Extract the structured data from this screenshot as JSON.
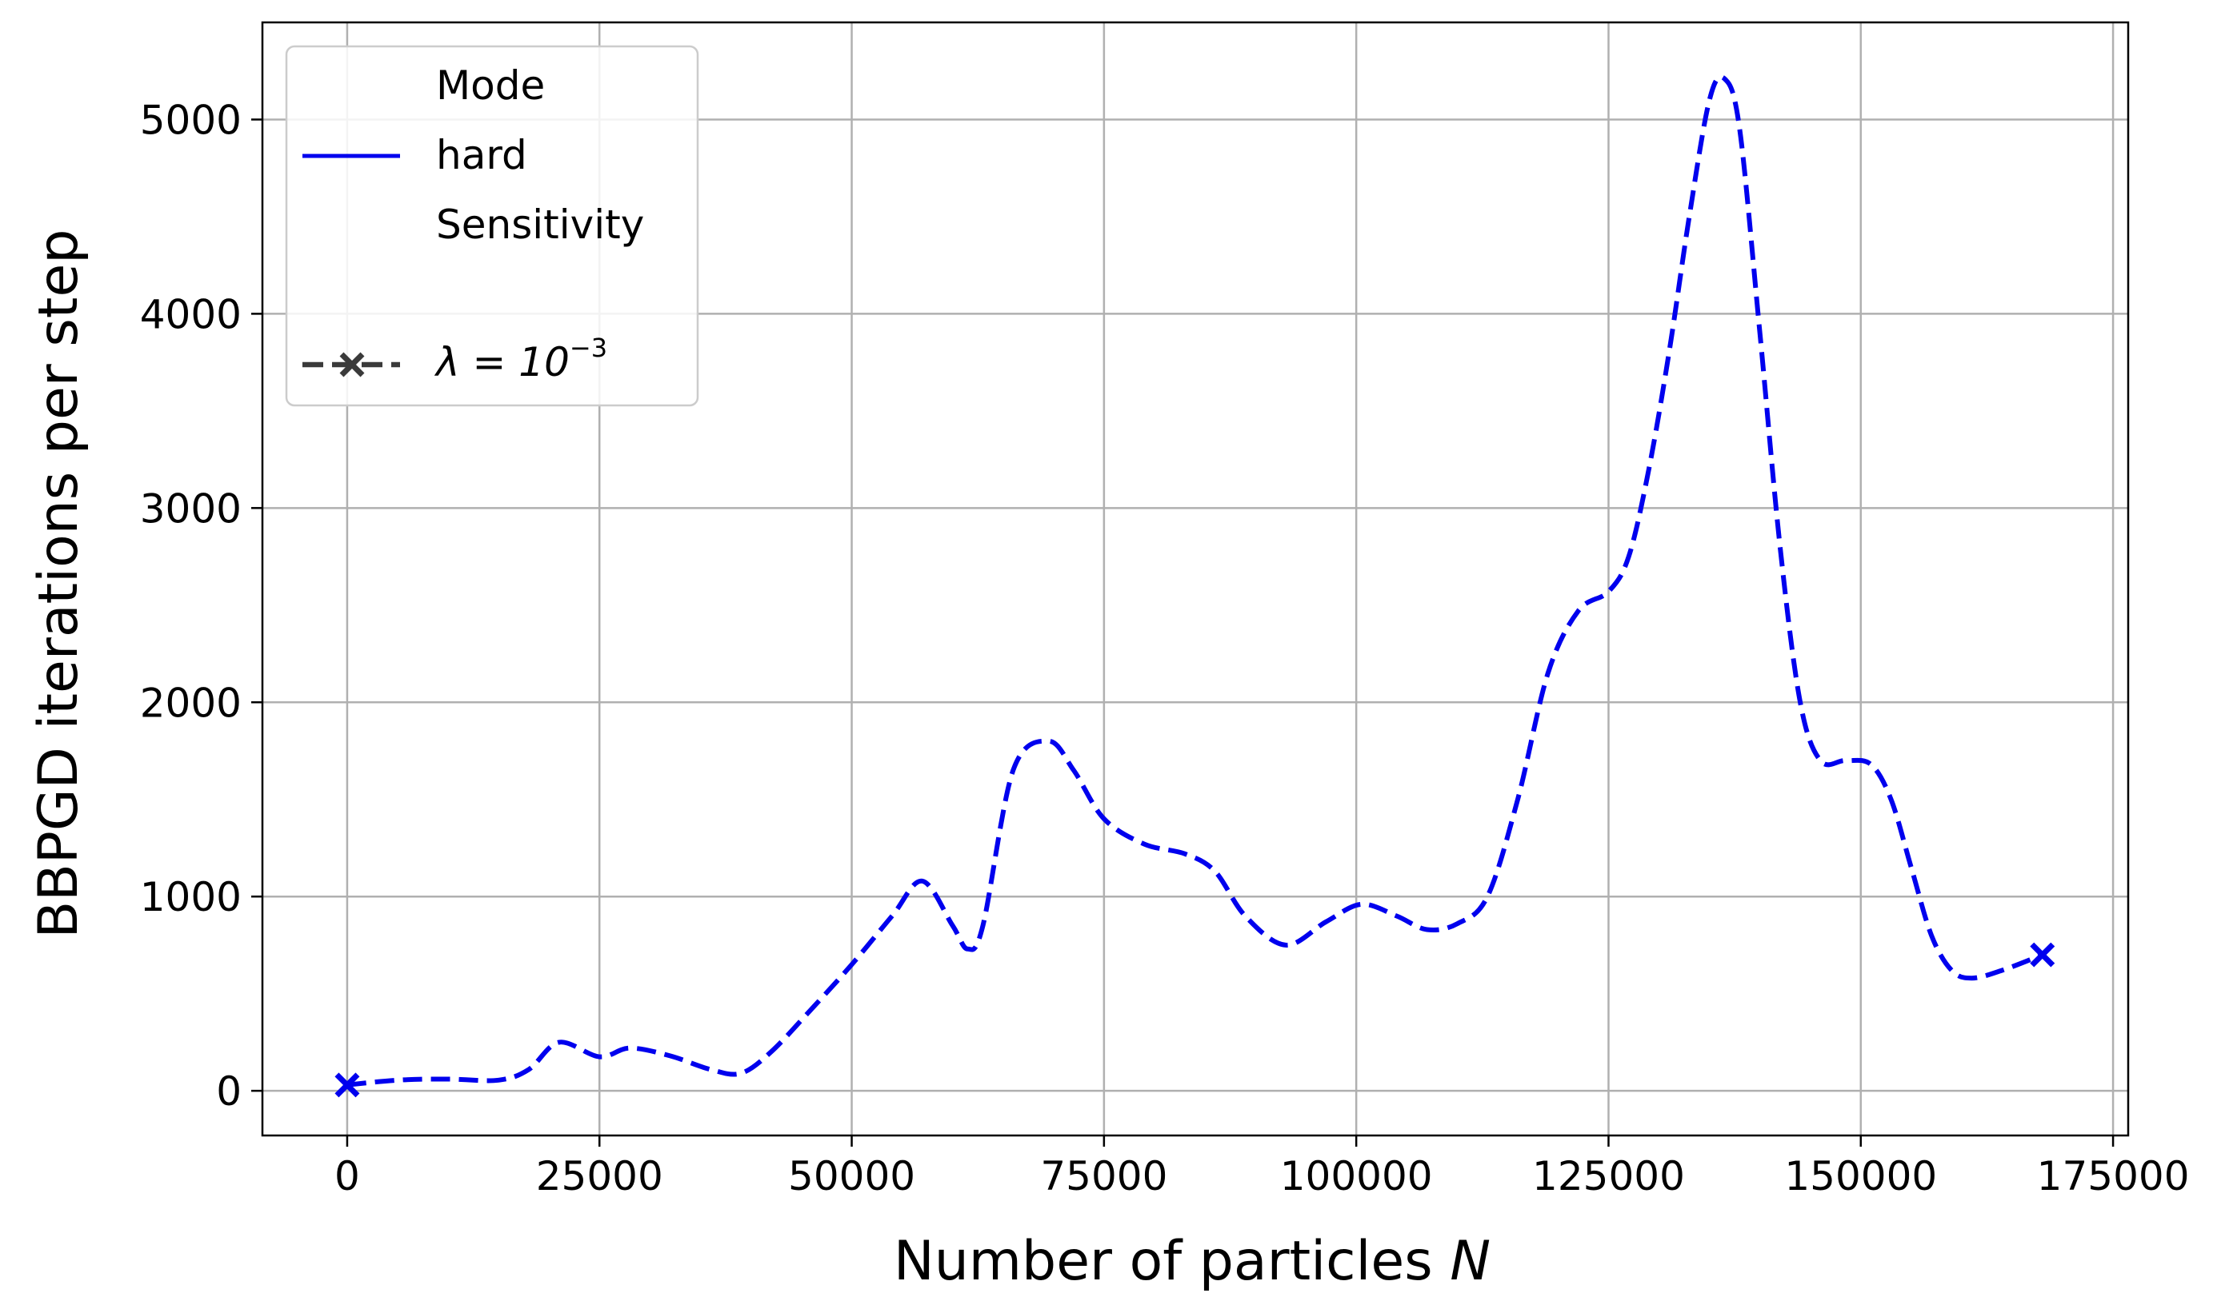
{
  "chart_data": {
    "type": "line",
    "xlabel": "Number of particles",
    "xlabel_var": "N",
    "ylabel": "BBPGD iterations per step",
    "xlim": [
      -8400,
      176500
    ],
    "ylim": [
      -230,
      5500
    ],
    "xticks": [
      0,
      25000,
      50000,
      75000,
      100000,
      125000,
      150000,
      175000
    ],
    "xtick_labels": [
      "0",
      "25000",
      "50000",
      "75000",
      "100000",
      "125000",
      "150000",
      "175000"
    ],
    "yticks": [
      0,
      1000,
      2000,
      3000,
      4000,
      5000
    ],
    "ytick_labels": [
      "0",
      "1000",
      "2000",
      "3000",
      "4000",
      "5000"
    ],
    "grid": true,
    "legend_position": "upper-left",
    "legend": {
      "mode_title": "Mode",
      "mode_entry": "hard",
      "sensitivity_title": "Sensitivity",
      "sensitivity_prefix": "λ = 10",
      "sensitivity_exponent": "−3"
    },
    "colors": {
      "line": "#0000ee",
      "legend_marker": "#3a3a3a",
      "grid": "#b0b0b0"
    },
    "series": [
      {
        "name": "hard, λ = 10^-3",
        "style": "dashed",
        "markers_at_ends": "x",
        "x": [
          0,
          5000,
          10000,
          15000,
          18000,
          21000,
          25000,
          28000,
          32000,
          36000,
          39000,
          42000,
          46000,
          50000,
          54000,
          57000,
          60000,
          61500,
          63000,
          66000,
          69500,
          72000,
          75000,
          79000,
          83000,
          86000,
          89000,
          93000,
          97000,
          100500,
          104000,
          107000,
          110000,
          113000,
          116000,
          119000,
          122000,
          125000,
          127000,
          129000,
          131000,
          133000,
          135000,
          136500,
          138000,
          140000,
          142000,
          144000,
          146000,
          148500,
          151000,
          153000,
          155000,
          157000,
          159000,
          161000,
          164000,
          168000
        ],
        "y": [
          30,
          55,
          60,
          55,
          110,
          250,
          175,
          220,
          180,
          110,
          90,
          200,
          420,
          650,
          900,
          1080,
          850,
          730,
          850,
          1650,
          1800,
          1650,
          1400,
          1270,
          1220,
          1130,
          900,
          750,
          870,
          960,
          900,
          830,
          860,
          1000,
          1500,
          2150,
          2470,
          2570,
          2750,
          3200,
          3800,
          4500,
          5100,
          5210,
          4950,
          3900,
          2800,
          2000,
          1700,
          1700,
          1680,
          1500,
          1150,
          800,
          620,
          580,
          620,
          700
        ]
      }
    ]
  }
}
